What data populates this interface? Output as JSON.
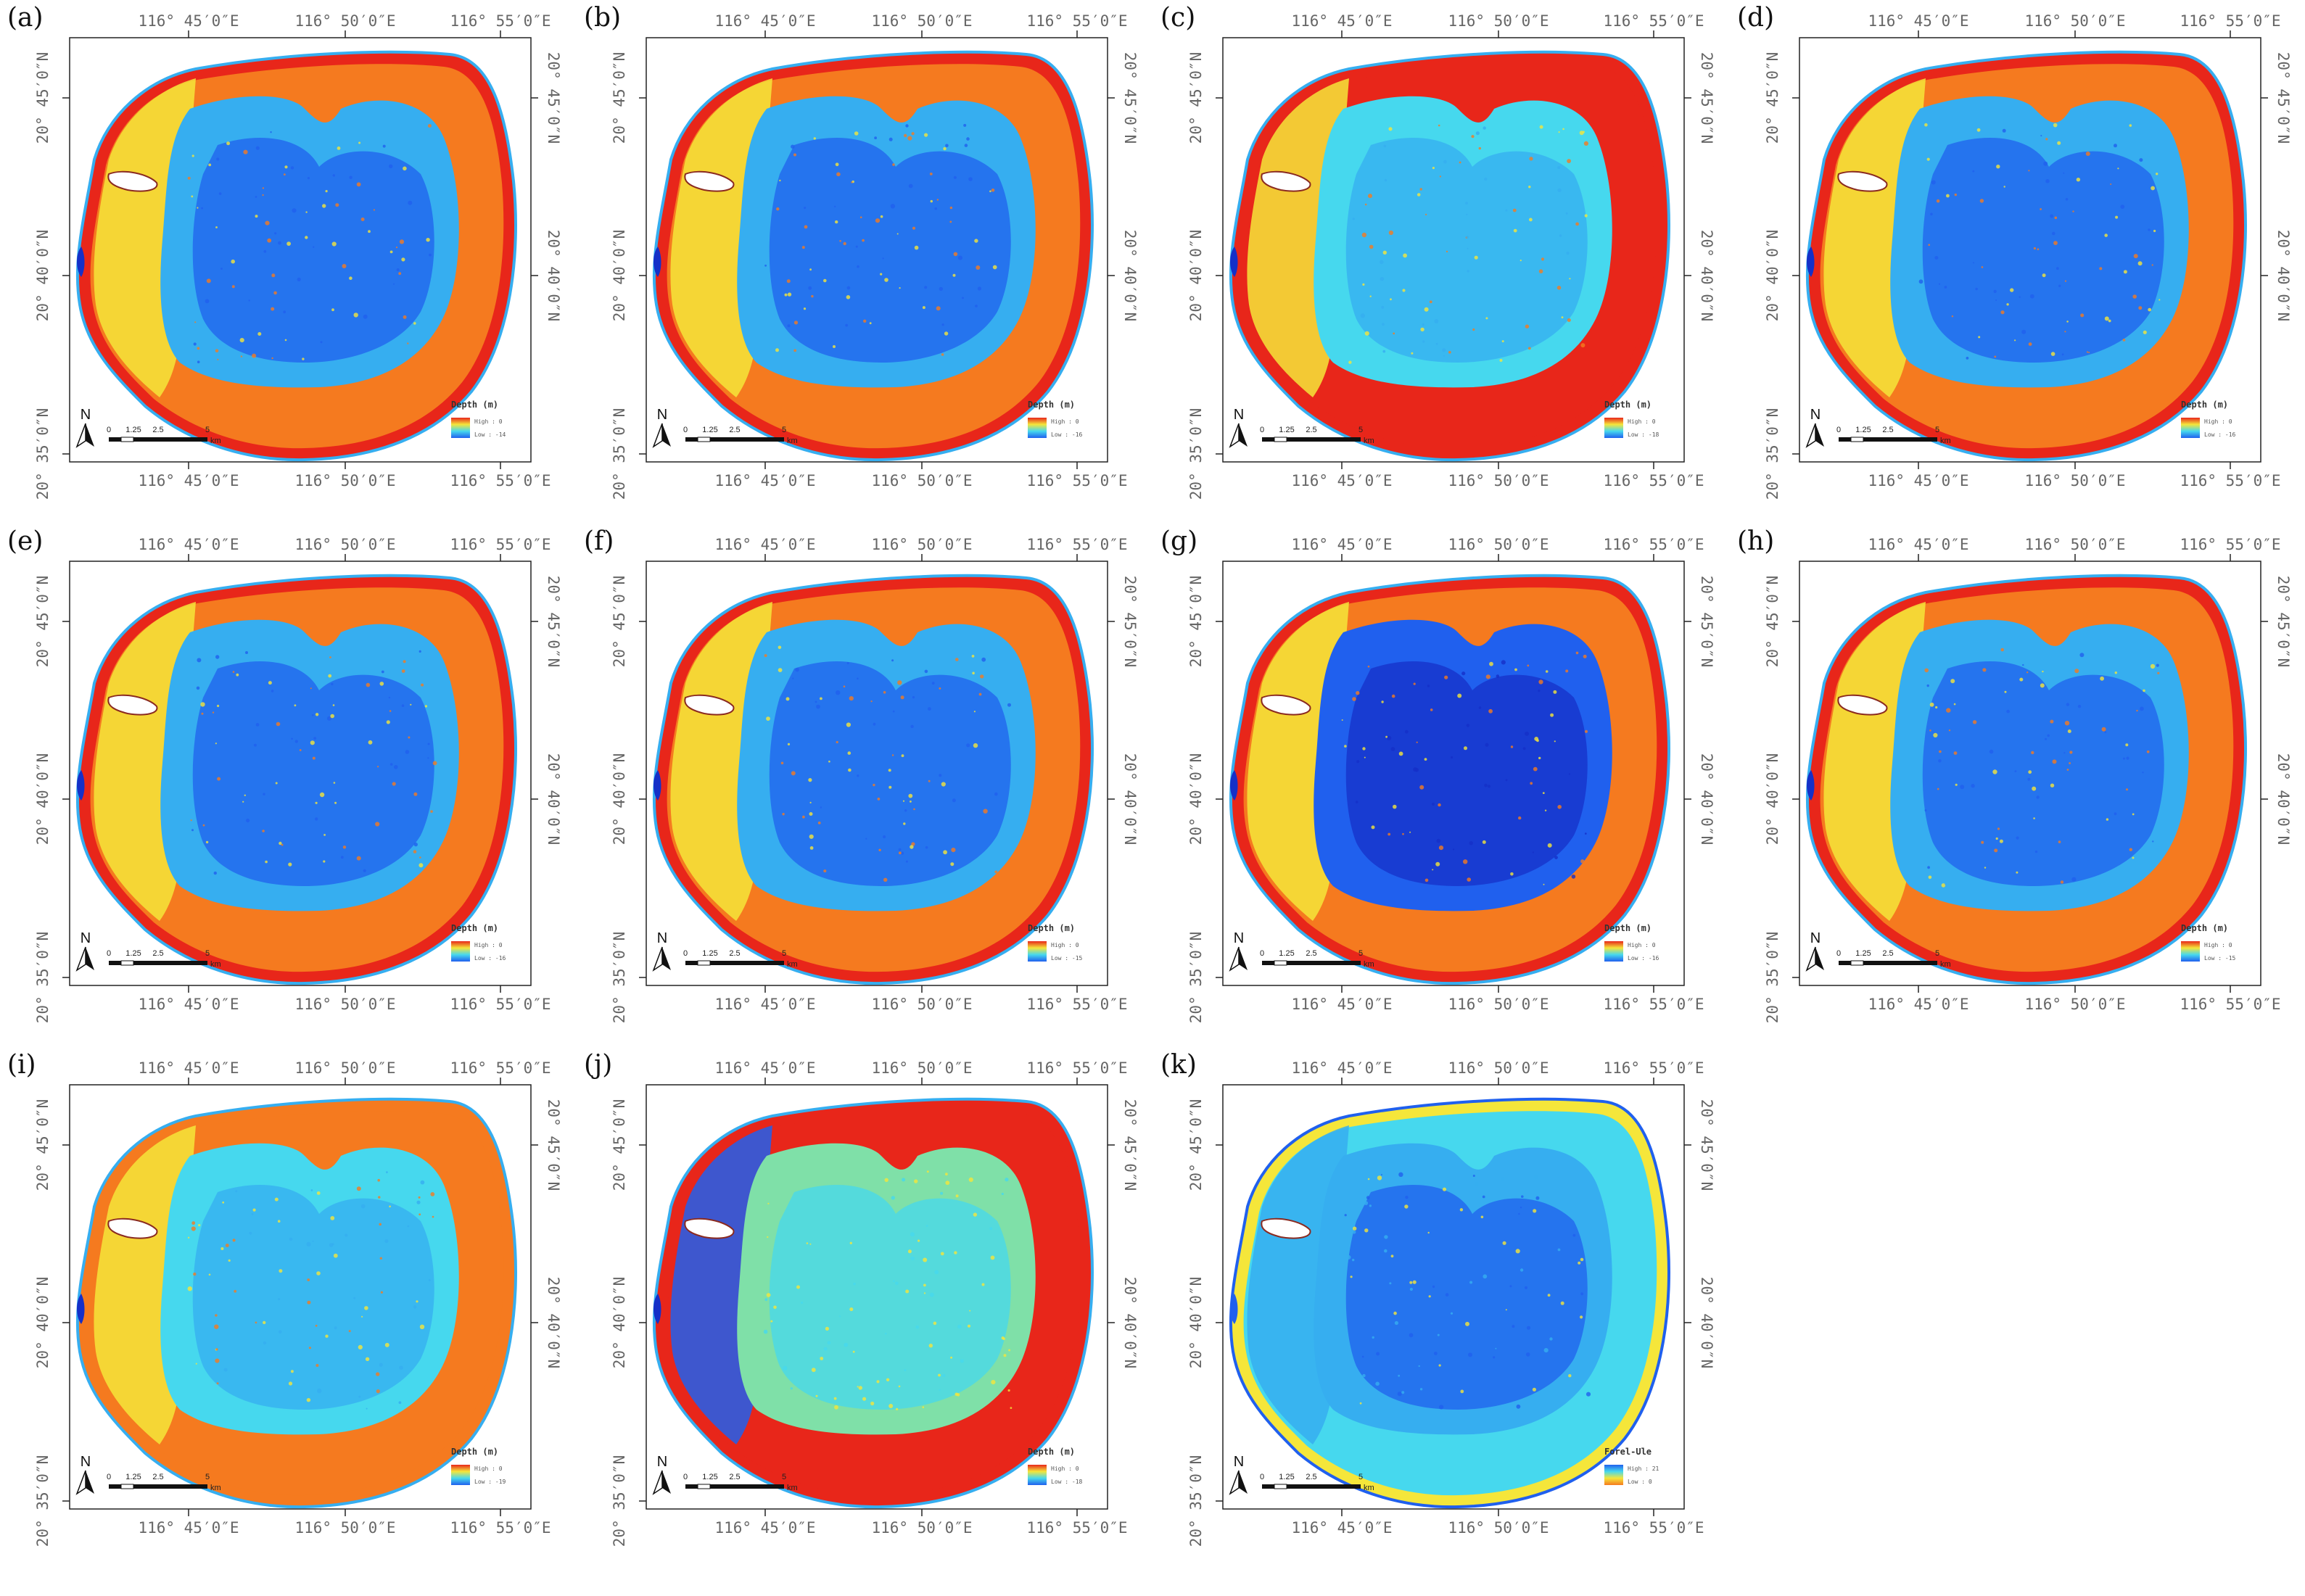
{
  "grid_labels": {
    "lon": [
      "116° 45′0″E",
      "116° 50′0″E",
      "116° 55′0″E"
    ],
    "lat": [
      "20° 45′0″N",
      "20° 40′0″N",
      "20° 35′0″N"
    ]
  },
  "scale_bar": {
    "ticks": [
      "0",
      "1.25",
      "2.5",
      "5"
    ],
    "unit": "km"
  },
  "north_label": "N",
  "panels": [
    {
      "label": "(a)",
      "legend_title": "Depth (m)",
      "legend_high": "High : 0",
      "legend_low": "Low : -14",
      "palette": "depth",
      "variant": "a"
    },
    {
      "label": "(b)",
      "legend_title": "Depth (m)",
      "legend_high": "High : 0",
      "legend_low": "Low : -16",
      "palette": "depth",
      "variant": "b"
    },
    {
      "label": "(c)",
      "legend_title": "Depth (m)",
      "legend_high": "High : 0",
      "legend_low": "Low : -18",
      "palette": "depth",
      "variant": "c"
    },
    {
      "label": "(d)",
      "legend_title": "Depth (m)",
      "legend_high": "High : 0",
      "legend_low": "Low : -16",
      "palette": "depth",
      "variant": "d"
    },
    {
      "label": "(e)",
      "legend_title": "Depth (m)",
      "legend_high": "High : 0",
      "legend_low": "Low : -16",
      "palette": "depth",
      "variant": "e"
    },
    {
      "label": "(f)",
      "legend_title": "Depth (m)",
      "legend_high": "High : 0",
      "legend_low": "Low : -15",
      "palette": "depth",
      "variant": "f"
    },
    {
      "label": "(g)",
      "legend_title": "Depth (m)",
      "legend_high": "High : 0",
      "legend_low": "Low : -16",
      "palette": "depth",
      "variant": "g"
    },
    {
      "label": "(h)",
      "legend_title": "Depth (m)",
      "legend_high": "High : 0",
      "legend_low": "Low : -15",
      "palette": "depth",
      "variant": "h"
    },
    {
      "label": "(i)",
      "legend_title": "Depth (m)",
      "legend_high": "High : 0",
      "legend_low": "Low : -19",
      "palette": "depth",
      "variant": "i"
    },
    {
      "label": "(j)",
      "legend_title": "Depth (m)",
      "legend_high": "High : 0",
      "legend_low": "Low : -18",
      "palette": "depth",
      "variant": "j"
    },
    {
      "label": "(k)",
      "legend_title": "Forel-Ule",
      "legend_high": "High : 21",
      "legend_low": "Low : 0",
      "palette": "forel",
      "variant": "k"
    }
  ],
  "colors": {
    "red": "#e8261a",
    "orange": "#f57a1f",
    "yellow": "#f5e63a",
    "cyan": "#46d8ee",
    "lightblue": "#36aef0",
    "blue": "#2060ee",
    "darkblue": "#1530c8"
  }
}
